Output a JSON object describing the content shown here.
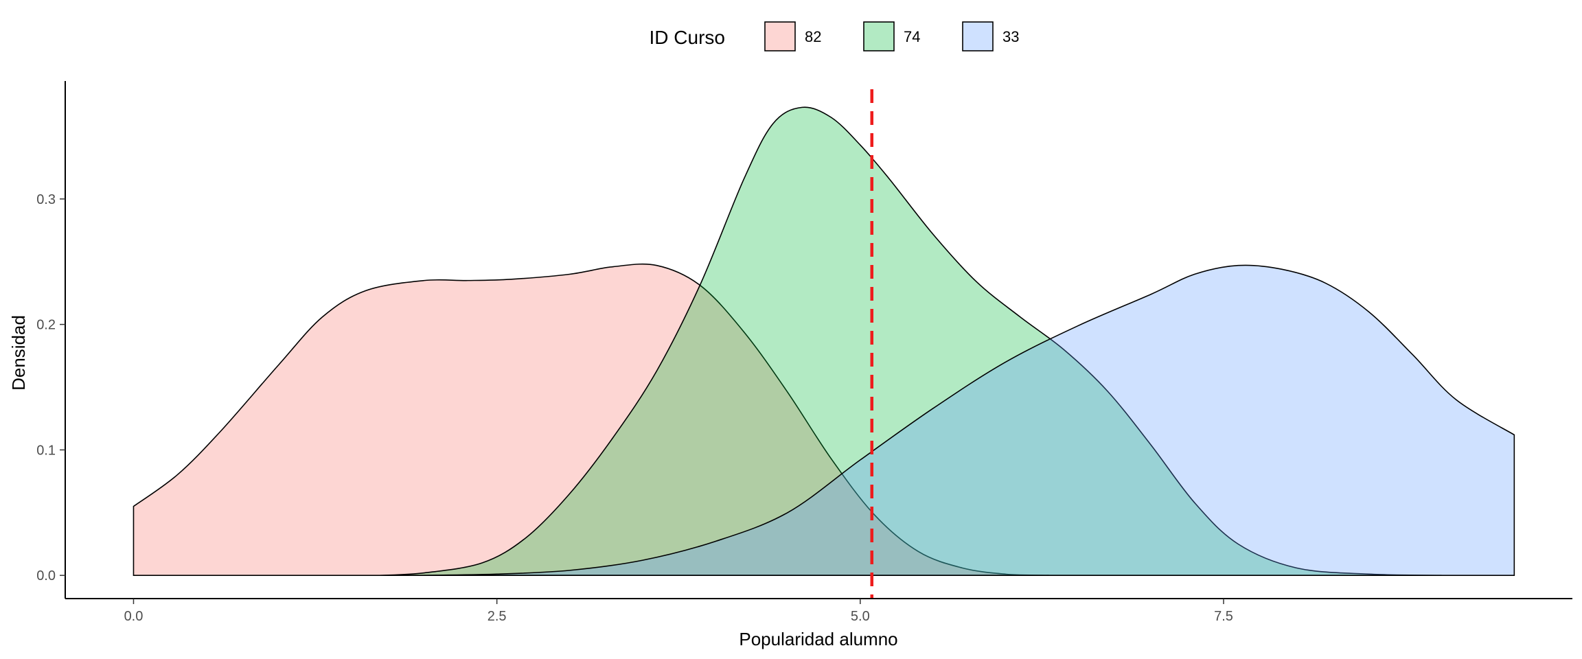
{
  "chart_data": {
    "type": "area",
    "subtype": "density",
    "title": "",
    "xlabel": "Popularidad alumno",
    "ylabel": "Densidad",
    "xlim": [
      -0.47,
      9.9
    ],
    "ylim": [
      -0.0185,
      0.394
    ],
    "x_ticks": [
      0.0,
      2.5,
      5.0,
      7.5
    ],
    "x_tick_labels": [
      "0.0",
      "2.5",
      "5.0",
      "7.5"
    ],
    "y_ticks": [
      0.0,
      0.1,
      0.2,
      0.3
    ],
    "y_tick_labels": [
      "0.0",
      "0.1",
      "0.2",
      "0.3"
    ],
    "grid": false,
    "legend": {
      "title": "ID Curso",
      "position": "top"
    },
    "vline": {
      "x": 5.08,
      "color": "#ee1c1c",
      "style": "dashed"
    },
    "series": [
      {
        "name": "82",
        "fill": "#f8766d",
        "fill_opacity": 0.3,
        "x": [
          0.0,
          0.3,
          0.6,
          1.0,
          1.3,
          1.6,
          2.0,
          2.3,
          2.6,
          3.0,
          3.3,
          3.6,
          3.9,
          4.2,
          4.5,
          4.8,
          5.1,
          5.4,
          5.7,
          6.0,
          6.3
        ],
        "y": [
          0.055,
          0.08,
          0.115,
          0.168,
          0.206,
          0.227,
          0.235,
          0.235,
          0.236,
          0.24,
          0.246,
          0.247,
          0.231,
          0.194,
          0.146,
          0.093,
          0.048,
          0.019,
          0.006,
          0.001,
          0.0
        ]
      },
      {
        "name": "74",
        "fill": "#00ba38",
        "fill_opacity": 0.3,
        "x": [
          1.7,
          2.0,
          2.4,
          2.7,
          3.0,
          3.3,
          3.6,
          3.9,
          4.2,
          4.4,
          4.6,
          4.8,
          5.0,
          5.2,
          5.5,
          5.8,
          6.1,
          6.4,
          6.7,
          7.0,
          7.3,
          7.6,
          8.0,
          8.5,
          9.0
        ],
        "y": [
          0.0,
          0.002,
          0.01,
          0.03,
          0.065,
          0.11,
          0.163,
          0.232,
          0.316,
          0.36,
          0.373,
          0.365,
          0.343,
          0.316,
          0.272,
          0.234,
          0.206,
          0.18,
          0.147,
          0.104,
          0.058,
          0.025,
          0.006,
          0.001,
          0.0
        ]
      },
      {
        "name": "33",
        "fill": "#619cff",
        "fill_opacity": 0.3,
        "x": [
          2.0,
          2.5,
          3.0,
          3.5,
          4.0,
          4.5,
          5.0,
          5.5,
          6.0,
          6.5,
          7.0,
          7.3,
          7.6,
          7.9,
          8.2,
          8.5,
          8.8,
          9.1,
          9.5
        ],
        "y": [
          0.0,
          0.001,
          0.004,
          0.012,
          0.027,
          0.05,
          0.092,
          0.133,
          0.17,
          0.199,
          0.224,
          0.24,
          0.247,
          0.244,
          0.233,
          0.21,
          0.176,
          0.14,
          0.112
        ]
      }
    ]
  }
}
